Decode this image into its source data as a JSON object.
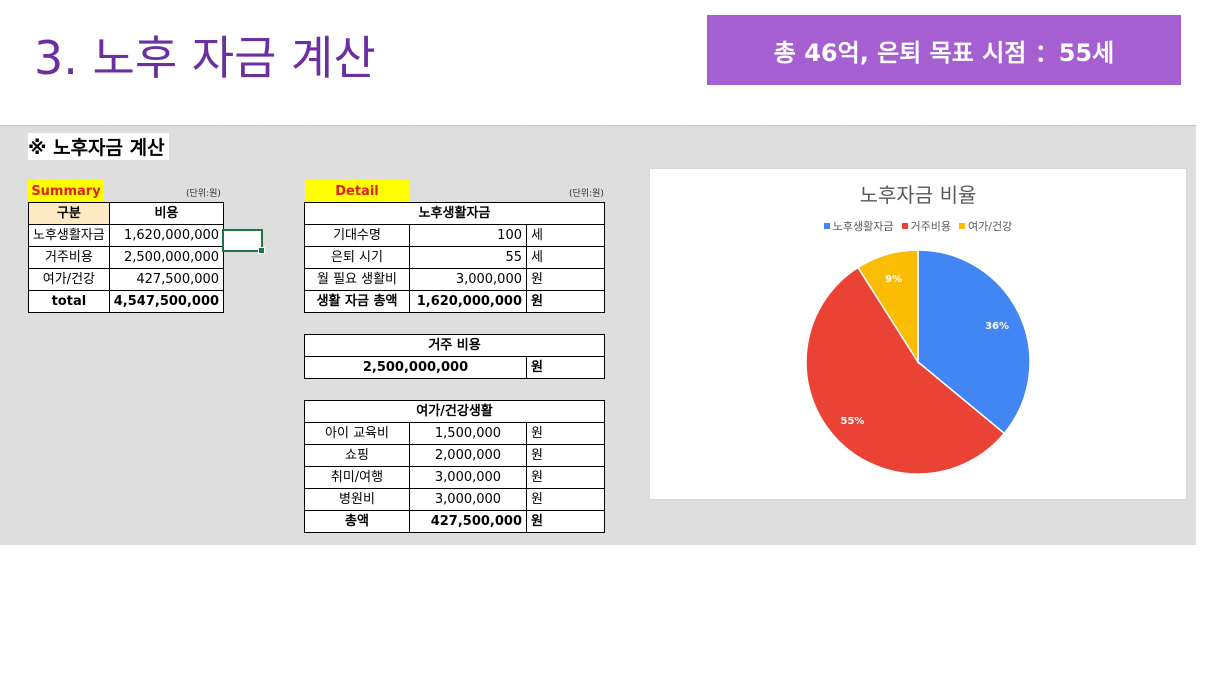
{
  "slide": {
    "title": "3. 노후 자금 계산",
    "goal_badge": "총 46억, 은퇴 목표 시점 ：55세"
  },
  "sheet": {
    "heading": "※ 노후자금 계산"
  },
  "summary": {
    "tag": "Summary",
    "unit": "(단위:원)",
    "headers": {
      "category": "구분",
      "cost": "비용"
    },
    "rows": [
      {
        "label": "노후생활자금",
        "value": "1,620,000,000"
      },
      {
        "label": "거주비용",
        "value": "2,500,000,000"
      },
      {
        "label": "여가/건강",
        "value": "427,500,000"
      }
    ],
    "total": {
      "label": "total",
      "value": "4,547,500,000"
    }
  },
  "detail": {
    "tag": "Detail",
    "unit": "(단위:원)",
    "living": {
      "title": "노후생활자금",
      "rows": [
        {
          "label": "기대수명",
          "value": "100",
          "unit": "세"
        },
        {
          "label": "은퇴 시기",
          "value": "55",
          "unit": "세"
        },
        {
          "label": "월 필요 생활비",
          "value": "3,000,000",
          "unit": "원"
        }
      ],
      "total": {
        "label": "생활 자금 총액",
        "value": "1,620,000,000",
        "unit": "원"
      }
    },
    "housing": {
      "title": "거주 비용",
      "value": "2,500,000,000",
      "unit": "원"
    },
    "leisure": {
      "title": "여가/건강생활",
      "rows": [
        {
          "label": "아이 교육비",
          "value": "1,500,000",
          "unit": "원"
        },
        {
          "label": "쇼핑",
          "value": "2,000,000",
          "unit": "원"
        },
        {
          "label": "취미/여행",
          "value": "3,000,000",
          "unit": "원"
        },
        {
          "label": "병원비",
          "value": "3,000,000",
          "unit": "원"
        }
      ],
      "total": {
        "label": "총액",
        "value": "427,500,000",
        "unit": "원"
      }
    }
  },
  "chart_data": {
    "type": "pie",
    "title": "노후자금 비율",
    "categories": [
      "노후생활자금",
      "거주비용",
      "여가/건강"
    ],
    "values": [
      36,
      55,
      9
    ],
    "data_labels": [
      "36%",
      "55%",
      "9%"
    ],
    "colors": [
      "#4285f4",
      "#ea4335",
      "#fbbc04"
    ],
    "legend_position": "top"
  },
  "colors": {
    "title": "#6b2fa0",
    "badge": "#a55fd0",
    "tag_bg": "#ffff00",
    "tag_text": "#e02020",
    "header_fill": "#fde9c4",
    "selection": "#217346"
  }
}
